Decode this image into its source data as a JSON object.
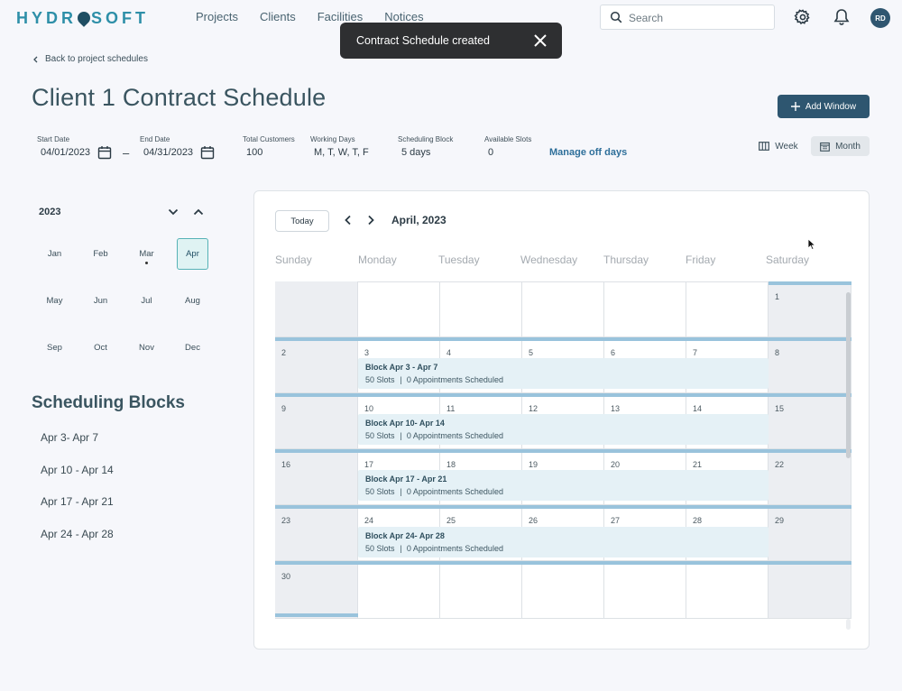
{
  "brand": {
    "logo_left": "HYDR",
    "logo_right": "SOFT"
  },
  "nav": [
    "Projects",
    "Clients",
    "Facilities",
    "Notices"
  ],
  "search": {
    "placeholder": "Search"
  },
  "user": {
    "initials": "RD"
  },
  "toast": {
    "message": "Contract Schedule created"
  },
  "back_link": "Back to project schedules",
  "page_title": "Client 1 Contract Schedule",
  "add_window_label": "Add Window",
  "fields": {
    "start_label": "Start Date",
    "start_value": "04/01/2023",
    "end_label": "End Date",
    "end_value": "04/31/2023",
    "customers_label": "Total Customers",
    "customers_value": "100",
    "working_label": "Working Days",
    "working_value": "M, T, W, T, F",
    "block_label": "Scheduling Block",
    "block_value": "5 days",
    "slots_label": "Available Slots",
    "slots_value": "0",
    "separator": "–"
  },
  "manage_off_days": "Manage off days",
  "views": {
    "week": "Week",
    "month": "Month"
  },
  "mini_calendar": {
    "year": "2023",
    "months": [
      "Jan",
      "Feb",
      "Mar",
      "Apr",
      "May",
      "Jun",
      "Jul",
      "Aug",
      "Sep",
      "Oct",
      "Nov",
      "Dec"
    ],
    "selected": "Apr"
  },
  "scheduling_blocks": {
    "title": "Scheduling Blocks",
    "items": [
      "Apr 3- Apr 7",
      "Apr 10 - Apr 14",
      "Apr 17 - Apr 21",
      "Apr 24 - Apr 28"
    ]
  },
  "calendar": {
    "today_label": "Today",
    "current_month": "April, 2023",
    "days": [
      "Sunday",
      "Monday",
      "Tuesday",
      "Wednesday",
      "Thursday",
      "Friday",
      "Saturday"
    ],
    "weeks": [
      [
        "",
        "",
        "",
        "",
        "",
        "",
        "1"
      ],
      [
        "2",
        "3",
        "4",
        "5",
        "6",
        "7",
        "8"
      ],
      [
        "9",
        "10",
        "11",
        "12",
        "13",
        "14",
        "15"
      ],
      [
        "16",
        "17",
        "18",
        "19",
        "20",
        "21",
        "22"
      ],
      [
        "23",
        "24",
        "25",
        "26",
        "27",
        "28",
        "29"
      ],
      [
        "30",
        "",
        "",
        "",
        "",
        "",
        ""
      ]
    ],
    "blocks": [
      {
        "title": "Block Apr 3 - Apr 7",
        "slots": "50 Slots",
        "sep": "|",
        "appointments": "0 Appointments Scheduled"
      },
      {
        "title": "Block Apr 10- Apr 14",
        "slots": "50 Slots",
        "sep": "|",
        "appointments": "0 Appointments Scheduled"
      },
      {
        "title": "Block Apr 17 - Apr 21",
        "slots": "50 Slots",
        "sep": "|",
        "appointments": "0 Appointments Scheduled"
      },
      {
        "title": "Block Apr 24- Apr 28",
        "slots": "50 Slots",
        "sep": "|",
        "appointments": "0 Appointments Scheduled"
      }
    ]
  },
  "colors": {
    "primary": "#2e5670",
    "accent": "#56b2b6",
    "week_bar": "#99c3dc",
    "block_bg": "#e5f1f6"
  }
}
